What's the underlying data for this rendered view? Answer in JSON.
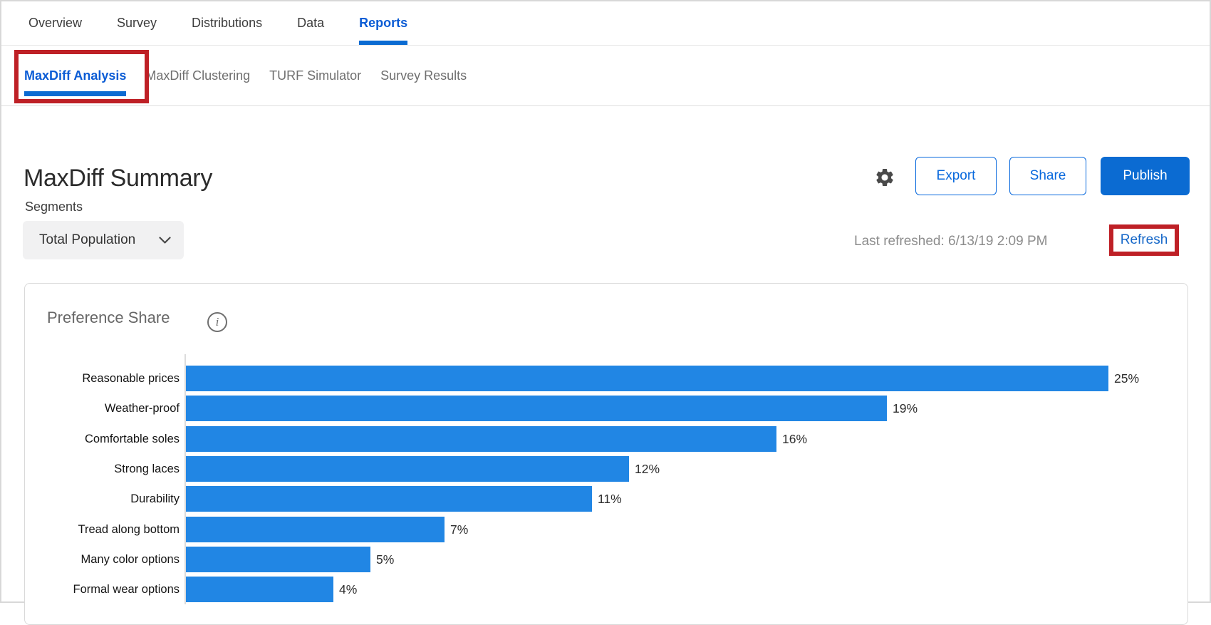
{
  "top_nav": {
    "items": [
      {
        "label": "Overview",
        "active": false
      },
      {
        "label": "Survey",
        "active": false
      },
      {
        "label": "Distributions",
        "active": false
      },
      {
        "label": "Data",
        "active": false
      },
      {
        "label": "Reports",
        "active": true
      }
    ]
  },
  "sub_nav": {
    "items": [
      {
        "label": "MaxDiff Analysis",
        "active": true
      },
      {
        "label": "MaxDiff Clustering",
        "active": false
      },
      {
        "label": "TURF Simulator",
        "active": false
      },
      {
        "label": "Survey Results",
        "active": false
      }
    ]
  },
  "header": {
    "title": "MaxDiff Summary",
    "export_label": "Export",
    "share_label": "Share",
    "publish_label": "Publish"
  },
  "segments": {
    "label": "Segments",
    "selected": "Total Population"
  },
  "refresh_bar": {
    "last_refreshed": "Last refreshed: 6/13/19 2:09 PM",
    "refresh_label": "Refresh"
  },
  "card": {
    "title": "Preference Share",
    "info_glyph": "i"
  },
  "icons": {
    "settings": "gear-icon",
    "dropdown": "chevron-down-icon",
    "info": "info-circle-icon"
  },
  "annotations": {
    "highlight_color": "#BE2026",
    "highlighted_elements": [
      "MaxDiff Analysis tab",
      "Refresh link"
    ]
  },
  "colors": {
    "accent_blue": "#0768DD",
    "active_tab_blue": "#0B5CD5",
    "publish_fill": "#0B6BD2",
    "bar_blue": "#2186E4",
    "annotation_red": "#BE2026"
  },
  "chart_data": {
    "type": "bar",
    "orientation": "horizontal",
    "title": "Preference Share",
    "categories": [
      "Reasonable prices",
      "Weather-proof",
      "Comfortable soles",
      "Strong laces",
      "Durability",
      "Tread along bottom",
      "Many color options",
      "Formal wear options"
    ],
    "values": [
      25,
      19,
      16,
      12,
      11,
      7,
      5,
      4
    ],
    "value_labels": [
      "25%",
      "19%",
      "16%",
      "12%",
      "11%",
      "7%",
      "5%",
      "4%"
    ],
    "unit": "percent",
    "xlim": [
      0,
      27
    ],
    "grid": false,
    "legend": false,
    "bar_color": "#2186E4"
  }
}
